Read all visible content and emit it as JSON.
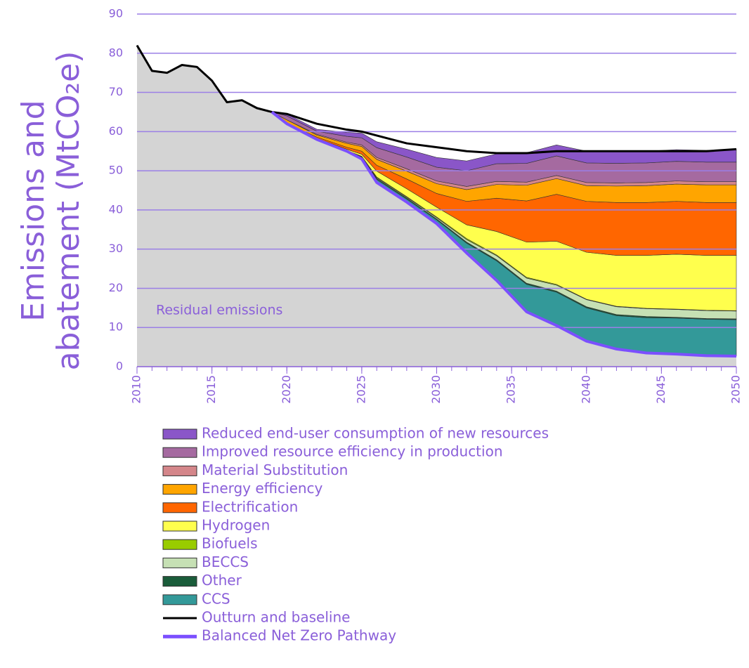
{
  "chart_data": {
    "type": "stacked_area",
    "ylabel": [
      "Emissions and",
      "abatement (MtCO₂e)"
    ],
    "annotation": "Residual emissions",
    "x": [
      2010,
      2011,
      2012,
      2013,
      2014,
      2015,
      2016,
      2017,
      2018,
      2019,
      2020,
      2022,
      2024,
      2025,
      2026,
      2028,
      2030,
      2032,
      2034,
      2036,
      2038,
      2040,
      2042,
      2044,
      2046,
      2048,
      2050
    ],
    "xlim": [
      2010,
      2050
    ],
    "xticks": [
      2010,
      2015,
      2020,
      2025,
      2030,
      2035,
      2040,
      2045,
      2050
    ],
    "ylim": [
      0,
      90
    ],
    "yticks": [
      0,
      10,
      20,
      30,
      40,
      50,
      60,
      70,
      80,
      90
    ],
    "grid": true,
    "series": [
      {
        "name": "Residual emissions",
        "color": "#d4d4d4",
        "values": [
          82,
          75.5,
          75,
          77,
          76.5,
          73,
          67.5,
          68,
          66,
          65,
          62,
          58,
          55,
          53,
          47,
          42,
          36.5,
          29,
          22,
          14,
          10.5,
          6.5,
          4.5,
          3.5,
          3.2,
          2.8,
          2.7
        ]
      },
      {
        "name": "CCS",
        "color": "#339999",
        "values": [
          0,
          0,
          0,
          0,
          0,
          0,
          0,
          0,
          0,
          0,
          0,
          0.1,
          0.2,
          0.5,
          0.8,
          0.8,
          1,
          2.5,
          5,
          7,
          8.5,
          8.5,
          8.5,
          9,
          9.2,
          9.3,
          9.3
        ]
      },
      {
        "name": "Other",
        "color": "#1a5c3a",
        "values": [
          0,
          0,
          0,
          0,
          0,
          0,
          0,
          0,
          0,
          0,
          0,
          0,
          0,
          0.1,
          0.2,
          0.2,
          0.2,
          0.3,
          0.3,
          0.3,
          0.3,
          0.3,
          0.3,
          0.3,
          0.2,
          0.2,
          0.2
        ]
      },
      {
        "name": "BECCS",
        "color": "#c6e0b4",
        "values": [
          0,
          0,
          0,
          0,
          0,
          0,
          0,
          0,
          0,
          0,
          0,
          0,
          0,
          0,
          0.2,
          0.2,
          0.3,
          0.6,
          1,
          1.3,
          1.5,
          1.8,
          2,
          2,
          2,
          2,
          2
        ]
      },
      {
        "name": "Biofuels",
        "color": "#99cc00",
        "values": [
          0,
          0,
          0,
          0,
          0,
          0,
          0,
          0,
          0,
          0,
          0,
          0,
          0,
          0.1,
          0.2,
          0.2,
          0.2,
          0.3,
          0.2,
          0.2,
          0.2,
          0.1,
          0.1,
          0.1,
          0.1,
          0.1,
          0.1
        ]
      },
      {
        "name": "Hydrogen",
        "color": "#ffff4d",
        "values": [
          0,
          0,
          0,
          0,
          0,
          0,
          0,
          0,
          0,
          0,
          0,
          0.2,
          0.3,
          0.5,
          1.5,
          2,
          2.5,
          3.5,
          6,
          9,
          11,
          12,
          13,
          13.5,
          14,
          14,
          14.1
        ]
      },
      {
        "name": "Electrification",
        "color": "#ff6600",
        "values": [
          0,
          0,
          0,
          0,
          0,
          0,
          0,
          0,
          0,
          0,
          0,
          0.3,
          0.5,
          0.8,
          1.5,
          2.5,
          3.5,
          6,
          8.5,
          10.5,
          12,
          13,
          13.5,
          13.5,
          13.5,
          13.5,
          13.5
        ]
      },
      {
        "name": "Energy efficiency",
        "color": "#ffa500",
        "values": [
          0,
          0,
          0,
          0,
          0,
          0,
          0,
          0,
          0,
          0,
          1,
          0.5,
          1,
          1.2,
          1.5,
          2,
          2.5,
          3,
          3.5,
          4,
          4,
          4,
          4.2,
          4.3,
          4.4,
          4.5,
          4.5
        ]
      },
      {
        "name": "Material Substitution",
        "color": "#d4868a",
        "values": [
          0,
          0,
          0,
          0,
          0,
          0,
          0,
          0,
          0,
          0,
          0,
          0.2,
          0.3,
          0.4,
          0.5,
          0.6,
          0.7,
          0.8,
          0.8,
          0.8,
          0.8,
          0.8,
          0.8,
          0.8,
          0.8,
          0.8,
          0.8
        ]
      },
      {
        "name": "Improved resource efficiency in production",
        "color": "#a56aa0",
        "values": [
          0,
          0,
          0,
          0,
          0,
          0,
          0,
          0,
          0,
          0,
          1,
          0.8,
          1.5,
          1.8,
          2.5,
          3,
          3.5,
          4,
          4.5,
          4.8,
          5,
          5,
          5,
          5,
          5,
          5,
          5
        ]
      },
      {
        "name": "Reduced end-user consumption of new resources",
        "color": "#8a56c8",
        "values": [
          0,
          0,
          0,
          0,
          0,
          0,
          0,
          0,
          0,
          0,
          0.5,
          0.5,
          1,
          1.2,
          1.5,
          2,
          2.5,
          2.5,
          2.5,
          2.7,
          2.8,
          3,
          3,
          3,
          3,
          3,
          3.2
        ]
      }
    ],
    "lines": [
      {
        "name": "Outturn and baseline",
        "color": "#000000",
        "values": [
          82,
          75.5,
          75,
          77,
          76.5,
          73,
          67.5,
          68,
          66,
          65,
          64.5,
          62,
          60.5,
          60,
          59,
          57,
          56,
          55,
          54.5,
          54.5,
          55,
          55,
          55,
          55,
          55,
          55,
          55.5
        ]
      },
      {
        "name": "Balanced Net Zero Pathway",
        "color": "#7b4fff",
        "values": [
          null,
          null,
          null,
          null,
          null,
          null,
          null,
          null,
          null,
          65,
          62,
          58,
          55,
          53,
          47,
          42,
          36.5,
          29,
          22,
          14,
          10.5,
          6.5,
          4.5,
          3.5,
          3.2,
          2.8,
          2.7
        ]
      }
    ]
  }
}
